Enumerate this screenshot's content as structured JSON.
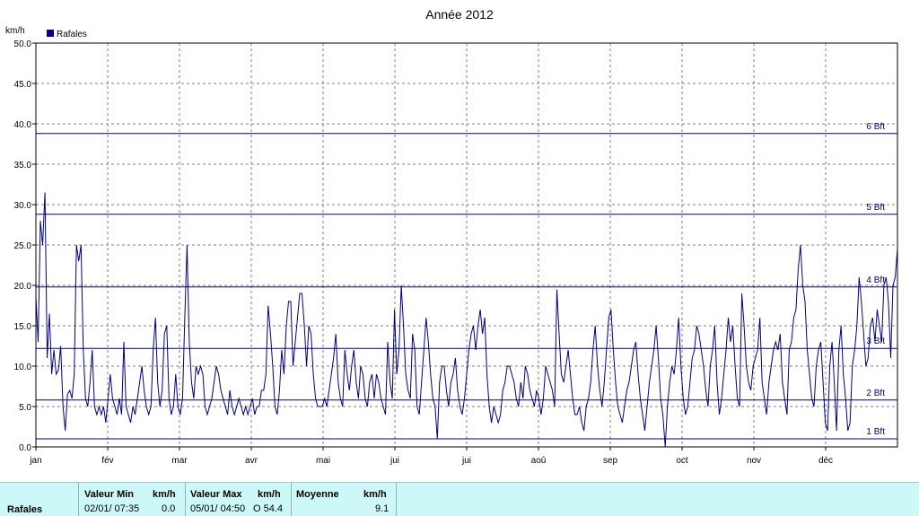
{
  "chart_data": {
    "type": "line",
    "title": "Année 2012",
    "ylabel": "km/h",
    "ylim": [
      0,
      50
    ],
    "yticks": [
      "0.0",
      "5.0",
      "10.0",
      "15.0",
      "20.0",
      "25.0",
      "30.0",
      "35.0",
      "40.0",
      "45.0",
      "50.0"
    ],
    "xticks": [
      "jan",
      "fév",
      "mar",
      "avr",
      "mai",
      "jui",
      "jui",
      "aoû",
      "sep",
      "oct",
      "nov",
      "déc"
    ],
    "legend": "top-left",
    "grid": true,
    "series": [
      {
        "name": "Rafales",
        "color": "#000080",
        "start_day": 1,
        "values": [
          18.5,
          13,
          28,
          25,
          31.5,
          11,
          16.5,
          9,
          12,
          9,
          9.5,
          12.5,
          5,
          2,
          6.5,
          7,
          6,
          9,
          25,
          23,
          25,
          12,
          6,
          5,
          8,
          12,
          5,
          4,
          5,
          4,
          5,
          3,
          6,
          9,
          6,
          5,
          4,
          6,
          4,
          13,
          5,
          4,
          3,
          5,
          4,
          6,
          8,
          10,
          7,
          5,
          4,
          5,
          12,
          16,
          8,
          5,
          7,
          14,
          15,
          6,
          4,
          5,
          9,
          5,
          4,
          6,
          16,
          25,
          13,
          8,
          6,
          10,
          9,
          10,
          9,
          5,
          4,
          5,
          6,
          8,
          10,
          9,
          7,
          6,
          5,
          4,
          7,
          5,
          4,
          5,
          6,
          5,
          4,
          5,
          4,
          5,
          6,
          4,
          5,
          5,
          7,
          7,
          9,
          17.5,
          14,
          10,
          5,
          4,
          7,
          12,
          9,
          15,
          18,
          18,
          10,
          13,
          16,
          19,
          19,
          15,
          10,
          15,
          14,
          9,
          6,
          5,
          5,
          5,
          6,
          5,
          7,
          9,
          11,
          14,
          8,
          6,
          5,
          12,
          9,
          7,
          10,
          12,
          8,
          6,
          10,
          9,
          6,
          5,
          8,
          9,
          6,
          9,
          8,
          6,
          5,
          4,
          13,
          8,
          6,
          17,
          9,
          12,
          20,
          15,
          9,
          7,
          6,
          14,
          12,
          5,
          4,
          8,
          12,
          16,
          13,
          9,
          6,
          5,
          1,
          8,
          10,
          10,
          7,
          5,
          8,
          9,
          11,
          7,
          5,
          4,
          6,
          9,
          12,
          14,
          15,
          12,
          15,
          17,
          14,
          16,
          9,
          5,
          3,
          5,
          4,
          3,
          4,
          7,
          8,
          10,
          10,
          9,
          8,
          6,
          5,
          8,
          6,
          10,
          9,
          7,
          6,
          5,
          7,
          6,
          4,
          6,
          10,
          9,
          8,
          7,
          5,
          19.5,
          14,
          9,
          8,
          10,
          12,
          9,
          6,
          4,
          4,
          5,
          3,
          2,
          5,
          6,
          8,
          12,
          15,
          10,
          7,
          5,
          8,
          12,
          16,
          17,
          12,
          8,
          5,
          4,
          3,
          5,
          7,
          8,
          10,
          12,
          13,
          9,
          6,
          4,
          2,
          5,
          8,
          10,
          12,
          15,
          11,
          6,
          4,
          0,
          5,
          8,
          10,
          9,
          12,
          16,
          10,
          6,
          4,
          5,
          8,
          11,
          12,
          15,
          14,
          12,
          10,
          7,
          5,
          10,
          12,
          15,
          8,
          4,
          6,
          9,
          12,
          16,
          13,
          15,
          10,
          6,
          5,
          19,
          15,
          10,
          8,
          7,
          10,
          11,
          12,
          16,
          8,
          6,
          4,
          8,
          10,
          12,
          13,
          12,
          14,
          8,
          6,
          4,
          12,
          13,
          16,
          17,
          22,
          25,
          20,
          18,
          12,
          9,
          6,
          5,
          10,
          12,
          13,
          8,
          3,
          2,
          10,
          13,
          8,
          2,
          12,
          15,
          9,
          6,
          2,
          3,
          10,
          12,
          15,
          21,
          18,
          14,
          10,
          11,
          15,
          16,
          13,
          17,
          15,
          13,
          20,
          21,
          18,
          11,
          20,
          21,
          24.5
        ]
      }
    ],
    "reference_lines": [
      {
        "label": "1 Bft",
        "value": 1
      },
      {
        "label": "2 Bft",
        "value": 5.8
      },
      {
        "label": "3 Bft",
        "value": 12.2
      },
      {
        "label": "4 Bft",
        "value": 19.8
      },
      {
        "label": "5 Bft",
        "value": 28.8
      },
      {
        "label": "6 Bft",
        "value": 38.8
      }
    ]
  },
  "stats": {
    "row_label": "Rafales",
    "min_header": "Valeur Min",
    "min_unit_header": "km/h",
    "min_date": "02/01/  07:35",
    "min_value": "0.0",
    "max_header": "Valeur Max",
    "max_unit_header": "km/h",
    "max_date": "05/01/  04:50",
    "max_value": "O 54.4",
    "mean_header": "Moyenne",
    "mean_unit_header": "km/h",
    "mean_value": "9.1"
  }
}
